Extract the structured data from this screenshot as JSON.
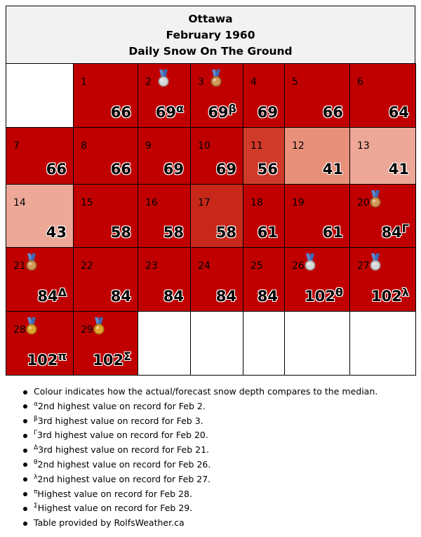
{
  "header": {
    "city": "Ottawa",
    "period": "February 1960",
    "metric": "Daily Snow On The Ground"
  },
  "colors": {
    "normal_high": "#c00000",
    "slightly_high": "#d03a2a",
    "near_median": "#c8281a",
    "below_median": "#e8907a",
    "low": "#eda898",
    "empty": "#ffffff"
  },
  "days": [
    {
      "day": "1",
      "value": "66",
      "mark": "",
      "medal": "",
      "color": "#c00000"
    },
    {
      "day": "2",
      "value": "69",
      "mark": "α",
      "medal": "silver",
      "color": "#c00000"
    },
    {
      "day": "3",
      "value": "69",
      "mark": "β",
      "medal": "bronze",
      "color": "#c00000"
    },
    {
      "day": "4",
      "value": "69",
      "mark": "",
      "medal": "",
      "color": "#c00000"
    },
    {
      "day": "5",
      "value": "66",
      "mark": "",
      "medal": "",
      "color": "#c00000"
    },
    {
      "day": "6",
      "value": "64",
      "mark": "",
      "medal": "",
      "color": "#c00000"
    },
    {
      "day": "7",
      "value": "66",
      "mark": "",
      "medal": "",
      "color": "#c00000"
    },
    {
      "day": "8",
      "value": "66",
      "mark": "",
      "medal": "",
      "color": "#c00000"
    },
    {
      "day": "9",
      "value": "69",
      "mark": "",
      "medal": "",
      "color": "#c00000"
    },
    {
      "day": "10",
      "value": "69",
      "mark": "",
      "medal": "",
      "color": "#c00000"
    },
    {
      "day": "11",
      "value": "56",
      "mark": "",
      "medal": "",
      "color": "#d03a2a"
    },
    {
      "day": "12",
      "value": "41",
      "mark": "",
      "medal": "",
      "color": "#e8907a"
    },
    {
      "day": "13",
      "value": "41",
      "mark": "",
      "medal": "",
      "color": "#eda898"
    },
    {
      "day": "14",
      "value": "43",
      "mark": "",
      "medal": "",
      "color": "#eda898"
    },
    {
      "day": "15",
      "value": "58",
      "mark": "",
      "medal": "",
      "color": "#c00000"
    },
    {
      "day": "16",
      "value": "58",
      "mark": "",
      "medal": "",
      "color": "#c00000"
    },
    {
      "day": "17",
      "value": "58",
      "mark": "",
      "medal": "",
      "color": "#c8281a"
    },
    {
      "day": "18",
      "value": "61",
      "mark": "",
      "medal": "",
      "color": "#c00000"
    },
    {
      "day": "19",
      "value": "61",
      "mark": "",
      "medal": "",
      "color": "#c00000"
    },
    {
      "day": "20",
      "value": "84",
      "mark": "Γ",
      "medal": "bronze",
      "color": "#c00000"
    },
    {
      "day": "21",
      "value": "84",
      "mark": "Δ",
      "medal": "bronze",
      "color": "#c00000"
    },
    {
      "day": "22",
      "value": "84",
      "mark": "",
      "medal": "",
      "color": "#c00000"
    },
    {
      "day": "23",
      "value": "84",
      "mark": "",
      "medal": "",
      "color": "#c00000"
    },
    {
      "day": "24",
      "value": "84",
      "mark": "",
      "medal": "",
      "color": "#c00000"
    },
    {
      "day": "25",
      "value": "84",
      "mark": "",
      "medal": "",
      "color": "#c00000"
    },
    {
      "day": "26",
      "value": "102",
      "mark": "θ",
      "medal": "silver",
      "color": "#c00000"
    },
    {
      "day": "27",
      "value": "102",
      "mark": "λ",
      "medal": "silver",
      "color": "#c00000"
    },
    {
      "day": "28",
      "value": "102",
      "mark": "π",
      "medal": "gold",
      "color": "#c00000"
    },
    {
      "day": "29",
      "value": "102",
      "mark": "Σ",
      "medal": "gold",
      "color": "#c00000"
    }
  ],
  "notes": [
    {
      "mark": "",
      "text": "Colour indicates how the actual/forecast snow depth compares to the median."
    },
    {
      "mark": "α",
      "text": "2nd highest value on record for Feb 2."
    },
    {
      "mark": "β",
      "text": "3rd highest value on record for Feb 3."
    },
    {
      "mark": "Γ",
      "text": "3rd highest value on record for Feb 20."
    },
    {
      "mark": "Δ",
      "text": "3rd highest value on record for Feb 21."
    },
    {
      "mark": "θ",
      "text": "2nd highest value on record for Feb 26."
    },
    {
      "mark": "λ",
      "text": "2nd highest value on record for Feb 27."
    },
    {
      "mark": "π",
      "text": "Highest value on record for Feb 28."
    },
    {
      "mark": "Σ",
      "text": "Highest value on record for Feb 29."
    },
    {
      "mark": "",
      "text": "Table provided by RolfsWeather.ca"
    }
  ]
}
